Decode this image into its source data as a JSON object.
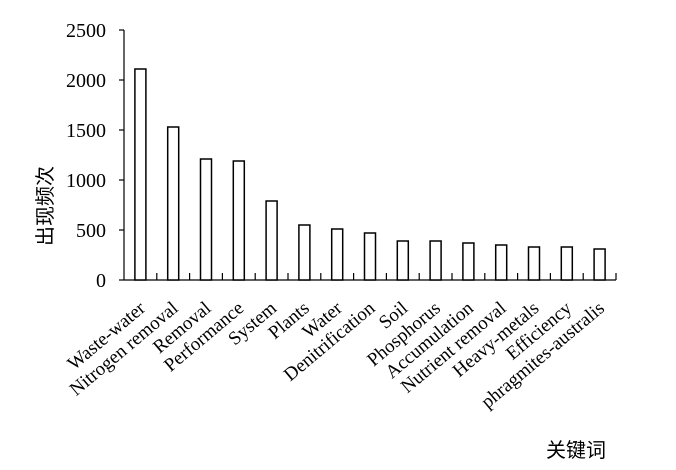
{
  "chart_data": {
    "type": "bar",
    "title": "",
    "xlabel": "关键词",
    "ylabel": "出现频次",
    "categories": [
      "Waste-water",
      "Nitrogen removal",
      "Removal",
      "Performance",
      "System",
      "Plants",
      "Water",
      "Denitrification",
      "Soil",
      "Phosphorus",
      "Accumulation",
      "Nutrient removal",
      "Heavy-metals",
      "Efficiency",
      "phragmites-australis"
    ],
    "values": [
      2110,
      1530,
      1210,
      1190,
      790,
      550,
      510,
      470,
      390,
      390,
      370,
      350,
      330,
      330,
      310
    ],
    "ylim": [
      0,
      2500
    ],
    "yticks": [
      0,
      500,
      1000,
      1500,
      2000,
      2500
    ],
    "grid": false,
    "legend": "none",
    "colors": {
      "bar_fill": "#ffffff",
      "bar_stroke": "#000000",
      "axis": "#000000"
    }
  }
}
